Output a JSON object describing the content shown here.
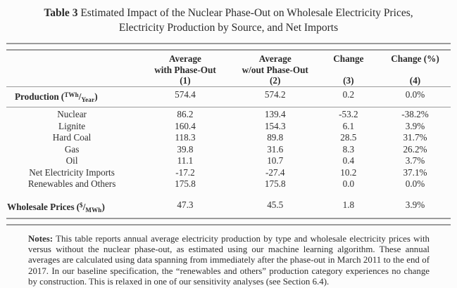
{
  "colors": {
    "text": "#2e2e2e",
    "rule": "#9b9b9b",
    "background": "#fcfcfc"
  },
  "title": {
    "label": "Table 3",
    "line1": "Estimated Impact of the Nuclear Phase-Out on Wholesale Electricity Prices,",
    "line2": "Electricity Production by Source, and Net Imports"
  },
  "table": {
    "columns": [
      {
        "line1": "Average",
        "line2": "with Phase-Out",
        "num": "(1)"
      },
      {
        "line1": "Average",
        "line2": "w/out Phase-Out",
        "num": "(2)"
      },
      {
        "line1": "Change",
        "line2": "",
        "num": "(3)"
      },
      {
        "line1": "Change (%)",
        "line2": "",
        "num": "(4)"
      }
    ],
    "rows": [
      {
        "label": "Production",
        "unit": {
          "open": "(",
          "sup": "TWh",
          "slash": "/",
          "sub": "Year",
          "close": ")"
        },
        "values": [
          "574.4",
          "574.2",
          "0.2",
          "0.0%"
        ]
      },
      {
        "label": "Nuclear",
        "values": [
          "86.2",
          "139.4",
          "-53.2",
          "-38.2%"
        ]
      },
      {
        "label": "Lignite",
        "values": [
          "160.4",
          "154.3",
          "6.1",
          "3.9%"
        ]
      },
      {
        "label": "Hard Coal",
        "values": [
          "118.3",
          "89.8",
          "28.5",
          "31.7%"
        ]
      },
      {
        "label": "Gas",
        "values": [
          "39.8",
          "31.6",
          "8.3",
          "26.2%"
        ]
      },
      {
        "label": "Oil",
        "values": [
          "11.1",
          "10.7",
          "0.4",
          "3.7%"
        ]
      },
      {
        "label": "Net Electricity Imports",
        "values": [
          "-17.2",
          "-27.4",
          "10.2",
          "37.1%"
        ]
      },
      {
        "label": "Renewables and Others",
        "values": [
          "175.8",
          "175.8",
          "0.0",
          "0.0%"
        ]
      },
      {
        "label": "Wholesale Prices",
        "unit": {
          "open": "(",
          "sup": "$",
          "slash": "/",
          "sub": "MWh",
          "close": ")"
        },
        "values": [
          "47.3",
          "45.5",
          "1.8",
          "3.9%"
        ]
      }
    ]
  },
  "notes": {
    "label": "Notes:",
    "text": "This table reports annual average electricity production by type and wholesale electricity prices with versus without the nuclear phase-out, as estimated using our machine learning algorithm. These annual averages are calculated using data spanning from immediately after the phase-out in March 2011 to the end of 2017. In our baseline specification, the “renewables and others” production category experiences no change by construction. This is relaxed in one of our sensitivity analyses (see Section 6.4)."
  }
}
